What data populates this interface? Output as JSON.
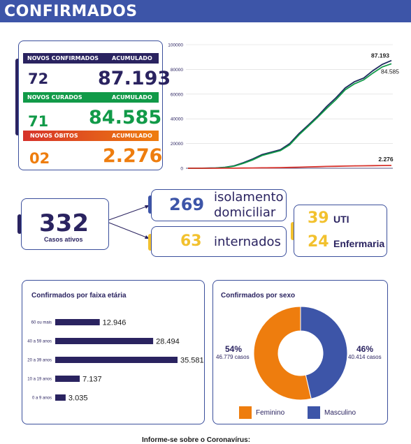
{
  "header": {
    "title": "CONFIRMADOS"
  },
  "summary": {
    "confirmados": {
      "label": "NOVOS CONFIRMADOS",
      "acum_label": "ACUMULADO",
      "new": "72",
      "total": "87.193"
    },
    "curados": {
      "label": "NOVOS CURADOS",
      "acum_label": "ACUMULADO",
      "new": "71",
      "total": "84.585"
    },
    "obitos": {
      "label": "NOVOS ÓBITOS",
      "acum_label": "ACUMULADO",
      "new": "02",
      "total": "2.276"
    }
  },
  "ativos": {
    "value": "332",
    "label": "Casos ativos"
  },
  "isolamento": {
    "value": "269",
    "label_line1": "isolamento",
    "label_line2": "domiciliar"
  },
  "internados": {
    "value": "63",
    "label": "internados"
  },
  "uti": {
    "value": "39",
    "label": "UTI"
  },
  "enfermaria": {
    "value": "24",
    "label": "Enfermaria"
  },
  "age_chart": {
    "title": "Confirmados por faixa etária"
  },
  "sex_chart": {
    "title": "Confirmados por sexo",
    "fem_pct": "54%",
    "fem_cases": "46.779 casos",
    "masc_pct": "46%",
    "masc_cases": "40.414 casos",
    "fem_label": "Feminino",
    "masc_label": "Masculino"
  },
  "footer": {
    "text": "Informe-se sobre o Coronavírus:"
  },
  "colors": {
    "navy": "#2a2360",
    "blue": "#3d55a8",
    "green": "#119a48",
    "orange": "#ee7d0e",
    "red": "#d6322b",
    "yellow": "#f2c12e"
  },
  "chart_data": [
    {
      "type": "line",
      "title": "",
      "ylim": [
        0,
        100000
      ],
      "yticks": [
        "100000",
        "80000",
        "60000",
        "40000",
        "20000",
        "0"
      ],
      "series": [
        {
          "name": "",
          "color": "#1e2a5e",
          "values": [
            0,
            0,
            100,
            300,
            800,
            2000,
            4500,
            7500,
            11000,
            13000,
            15000,
            20000,
            28000,
            35000,
            42000,
            50000,
            57000,
            65000,
            70000,
            73000,
            79000,
            84000,
            87193
          ],
          "end_label": "87.193"
        },
        {
          "name": "",
          "color": "#119a48",
          "values": [
            0,
            0,
            50,
            200,
            600,
            1700,
            4000,
            6800,
            10300,
            12300,
            14300,
            19000,
            27000,
            34000,
            41000,
            48500,
            55500,
            63500,
            68300,
            71500,
            77000,
            82000,
            84585
          ],
          "end_label": "84.585"
        },
        {
          "name": "",
          "color": "#d6322b",
          "values": [
            0,
            0,
            10,
            20,
            30,
            60,
            150,
            250,
            350,
            420,
            500,
            650,
            850,
            1050,
            1250,
            1450,
            1600,
            1750,
            1900,
            2000,
            2100,
            2200,
            2276
          ],
          "end_label": "2.276"
        }
      ]
    },
    {
      "type": "bar",
      "title": "Confirmados por faixa etária",
      "categories": [
        "60 ou mais",
        "40 a 59 anos",
        "20 a 39 anos",
        "10 a 19 anos",
        "0 a 9 anos"
      ],
      "values": [
        12946,
        28494,
        35581,
        7137,
        3035
      ],
      "value_labels": [
        "12.946",
        "28.494",
        "35.581",
        "7.137",
        "3.035"
      ]
    },
    {
      "type": "pie",
      "title": "Confirmados por sexo",
      "categories": [
        "Feminino",
        "Masculino"
      ],
      "values": [
        46779,
        40414
      ],
      "percent": [
        54,
        46
      ],
      "colors": [
        "#ee7d0e",
        "#3d55a8"
      ]
    }
  ]
}
